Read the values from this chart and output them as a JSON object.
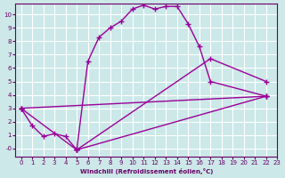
{
  "xlabel": "Windchill (Refroidissement éolien,°C)",
  "background_color": "#cce8e8",
  "grid_color": "#ffffff",
  "line_color": "#990099",
  "xlim": [
    -0.5,
    23
  ],
  "ylim": [
    -0.6,
    10.8
  ],
  "xticks": [
    0,
    1,
    2,
    3,
    4,
    5,
    6,
    7,
    8,
    9,
    10,
    11,
    12,
    13,
    14,
    15,
    16,
    17,
    18,
    19,
    20,
    21,
    22,
    23
  ],
  "yticks": [
    0,
    1,
    2,
    3,
    4,
    5,
    6,
    7,
    8,
    9,
    10
  ],
  "ytick_labels": [
    "-0",
    "1",
    "2",
    "3",
    "4",
    "5",
    "6",
    "7",
    "8",
    "9",
    "10"
  ],
  "line1_x": [
    0,
    1,
    2,
    3,
    4,
    5,
    6,
    7,
    8,
    9,
    10,
    11,
    12,
    13,
    14,
    15,
    16,
    17,
    22
  ],
  "line1_y": [
    3.0,
    1.7,
    0.9,
    1.1,
    0.9,
    -0.1,
    6.5,
    8.3,
    9.0,
    9.5,
    10.4,
    10.7,
    10.4,
    10.6,
    10.6,
    9.3,
    7.6,
    5.0,
    3.9
  ],
  "line2_x": [
    0,
    22
  ],
  "line2_y": [
    3.0,
    3.9
  ],
  "line3_x": [
    5,
    22
  ],
  "line3_y": [
    -0.1,
    3.9
  ],
  "line4_x": [
    5,
    17,
    22
  ],
  "line4_y": [
    -0.1,
    6.7,
    5.0
  ],
  "line5_x": [
    0,
    5
  ],
  "line5_y": [
    3.0,
    -0.1
  ]
}
